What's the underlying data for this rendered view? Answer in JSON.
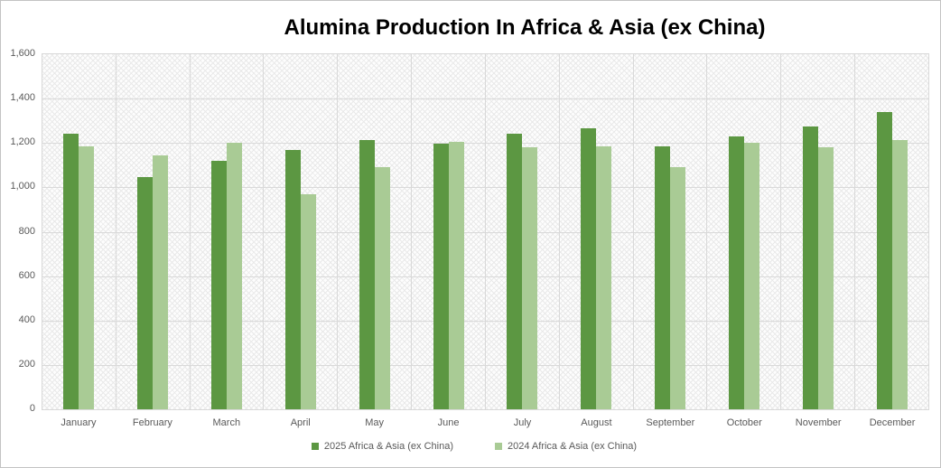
{
  "chart": {
    "title": "Alumina Production In Africa & Asia (ex China)"
  },
  "chart_data": {
    "type": "bar",
    "title": "Alumina Production In Africa & Asia (ex China)",
    "categories": [
      "January",
      "February",
      "March",
      "April",
      "May",
      "June",
      "July",
      "August",
      "September",
      "October",
      "November",
      "December"
    ],
    "series": [
      {
        "name": "2025 Africa & Asia (ex China)",
        "color": "#5C9742",
        "values": [
          1240,
          1045,
          1120,
          1170,
          1215,
          1195,
          1240,
          1265,
          1185,
          1230,
          1275,
          1340
        ]
      },
      {
        "name": "2024 Africa & Asia (ex China)",
        "color": "#A9CB95",
        "values": [
          1185,
          1145,
          1200,
          970,
          1090,
          1205,
          1180,
          1185,
          1090,
          1200,
          1180,
          1215
        ]
      }
    ],
    "xlabel": "",
    "ylabel": "",
    "ylim": [
      0,
      1600
    ],
    "ytick_interval": 200,
    "ytick_labels": [
      "1,600",
      "1,400",
      "1,200",
      "1,000",
      "800",
      "600",
      "400",
      "200",
      "0"
    ],
    "grid": true,
    "legend_position": "bottom",
    "plot_background_pattern": "light-gray-diagonal-crosshatch",
    "gridline_color": "#d9d9d9",
    "axis_text_color": "#595959"
  }
}
